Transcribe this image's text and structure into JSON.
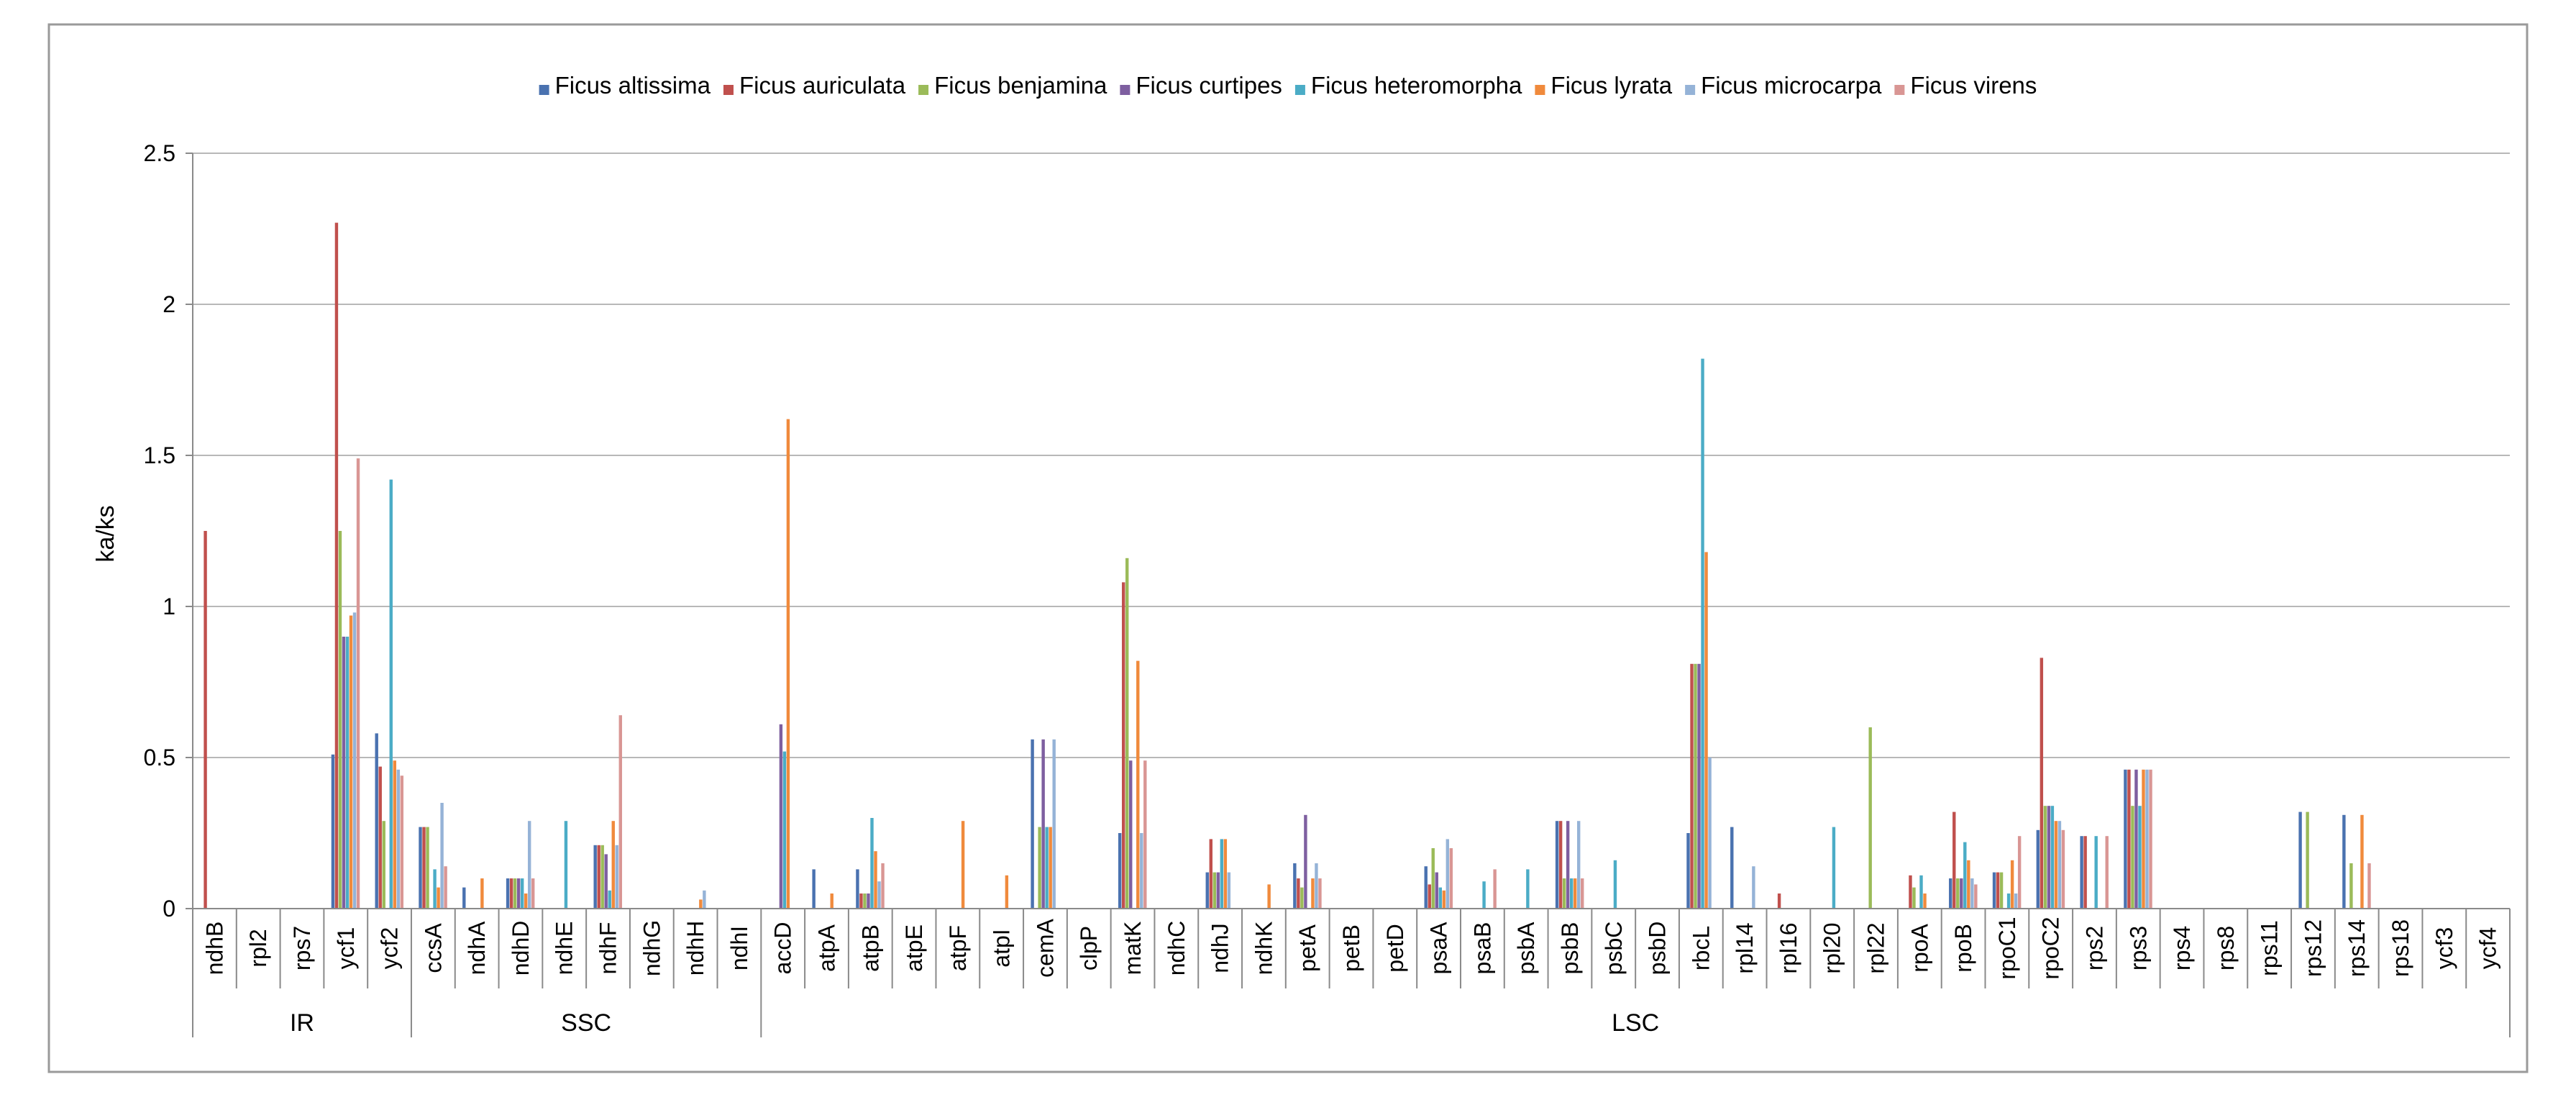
{
  "chart_data": {
    "type": "bar",
    "title": "",
    "xlabel": "",
    "ylabel": "ka/ks",
    "ylim": [
      0,
      2.5
    ],
    "yticks": [
      0,
      0.5,
      1,
      1.5,
      2,
      2.5
    ],
    "ytick_labels": [
      "0",
      "0.5",
      "1",
      "1.5",
      "2",
      "2.5"
    ],
    "grid": true,
    "legend_position": "top",
    "categories": [
      "ndhB",
      "rpl2",
      "rps7",
      "ycf1",
      "ycf2",
      "ccsA",
      "ndhA",
      "ndhD",
      "ndhE",
      "ndhF",
      "ndhG",
      "ndhH",
      "ndhI",
      "accD",
      "atpA",
      "atpB",
      "atpE",
      "atpF",
      "atpI",
      "cemA",
      "clpP",
      "matK",
      "ndhC",
      "ndhJ",
      "ndhK",
      "petA",
      "petB",
      "petD",
      "psaA",
      "psaB",
      "psbA",
      "psbB",
      "psbC",
      "psbD",
      "rbcL",
      "rpl14",
      "rpl16",
      "rpl20",
      "rpl22",
      "rpoA",
      "rpoB",
      "rpoC1",
      "rpoC2",
      "rps2",
      "rps3",
      "rps4",
      "rps8",
      "rps11",
      "rps12",
      "rps14",
      "rps18",
      "ycf3",
      "ycf4"
    ],
    "groups": [
      {
        "label": "IR",
        "count": 5
      },
      {
        "label": "SSC",
        "count": 8
      },
      {
        "label": "LSC",
        "count": 40
      }
    ],
    "series": [
      {
        "name": "Ficus altissima",
        "color": "#4a72b0",
        "values": [
          0,
          0,
          0,
          0.51,
          0.58,
          0.27,
          0.07,
          0.1,
          0,
          0.21,
          0,
          0,
          0,
          0,
          0.13,
          0.13,
          0,
          0,
          0,
          0.56,
          0,
          0.25,
          0,
          0.12,
          0,
          0.15,
          0,
          0,
          0.14,
          0,
          0,
          0.29,
          0,
          0,
          0.25,
          0.27,
          0,
          0,
          0,
          0,
          0.1,
          0.12,
          0.26,
          0.24,
          0.46,
          0,
          0,
          0,
          0.32,
          0.31,
          0,
          0,
          0
        ]
      },
      {
        "name": "Ficus auriculata",
        "color": "#c0504d",
        "values": [
          1.25,
          0,
          0,
          2.27,
          0.47,
          0.27,
          0,
          0.1,
          0,
          0.21,
          0,
          0,
          0,
          0,
          0,
          0.05,
          0,
          0,
          0,
          0,
          0,
          1.08,
          0,
          0.23,
          0,
          0.1,
          0,
          0,
          0.08,
          0,
          0,
          0.29,
          0,
          0,
          0.81,
          0,
          0.05,
          0,
          0,
          0.11,
          0.32,
          0.12,
          0.83,
          0.24,
          0.46,
          0,
          0,
          0,
          0,
          0,
          0,
          0,
          0
        ]
      },
      {
        "name": "Ficus benjamina",
        "color": "#9bbb59",
        "values": [
          0,
          0,
          0,
          1.25,
          0.29,
          0.27,
          0,
          0.1,
          0,
          0.21,
          0,
          0,
          0,
          0,
          0,
          0.05,
          0,
          0,
          0,
          0.27,
          0,
          1.16,
          0,
          0.12,
          0,
          0.07,
          0,
          0,
          0.2,
          0,
          0,
          0.1,
          0,
          0,
          0.81,
          0,
          0,
          0,
          0.6,
          0.07,
          0.1,
          0.12,
          0.34,
          0,
          0.34,
          0,
          0,
          0,
          0.32,
          0.15,
          0,
          0,
          0
        ]
      },
      {
        "name": "Ficus curtipes",
        "color": "#7e5fa0",
        "values": [
          0,
          0,
          0,
          0.9,
          0,
          0,
          0,
          0.1,
          0,
          0.18,
          0,
          0,
          0,
          0.61,
          0,
          0.05,
          0,
          0,
          0,
          0.56,
          0,
          0.49,
          0,
          0.12,
          0,
          0.31,
          0,
          0,
          0.12,
          0,
          0,
          0.29,
          0,
          0,
          0.81,
          0,
          0,
          0,
          0,
          0,
          0.1,
          0,
          0.34,
          0,
          0.46,
          0,
          0,
          0,
          0,
          0,
          0,
          0,
          0
        ]
      },
      {
        "name": "Ficus heteromorpha",
        "color": "#4bacc6",
        "values": [
          0,
          0,
          0,
          0.9,
          1.42,
          0.13,
          0,
          0.1,
          0.29,
          0.06,
          0,
          0,
          0,
          0.52,
          0,
          0.3,
          0,
          0,
          0,
          0.27,
          0,
          0,
          0,
          0.23,
          0,
          0,
          0,
          0,
          0.07,
          0.09,
          0.13,
          0.1,
          0.16,
          0,
          1.82,
          0,
          0,
          0.27,
          0,
          0.11,
          0.22,
          0.05,
          0.34,
          0.24,
          0.34,
          0,
          0,
          0,
          0,
          0,
          0,
          0,
          0
        ]
      },
      {
        "name": "Ficus lyrata",
        "color": "#f08a3c",
        "values": [
          0,
          0,
          0,
          0.97,
          0.49,
          0.07,
          0.1,
          0.05,
          0,
          0.29,
          0,
          0.03,
          0,
          1.62,
          0.05,
          0.19,
          0,
          0.29,
          0.11,
          0.27,
          0,
          0.82,
          0,
          0.23,
          0.08,
          0.1,
          0,
          0,
          0.06,
          0,
          0,
          0.1,
          0,
          0,
          1.18,
          0,
          0,
          0,
          0,
          0.05,
          0.16,
          0.16,
          0.29,
          0,
          0.46,
          0,
          0,
          0,
          0,
          0.31,
          0,
          0,
          0
        ]
      },
      {
        "name": "Ficus microcarpa",
        "color": "#95b3d7",
        "values": [
          0,
          0,
          0,
          0.98,
          0.46,
          0.35,
          0,
          0.29,
          0,
          0.21,
          0,
          0.06,
          0,
          0,
          0,
          0.09,
          0,
          0,
          0,
          0.56,
          0,
          0.25,
          0,
          0.12,
          0,
          0.15,
          0,
          0,
          0.23,
          0,
          0,
          0.29,
          0,
          0,
          0.5,
          0.14,
          0,
          0,
          0,
          0,
          0.1,
          0.05,
          0.29,
          0,
          0.46,
          0,
          0,
          0,
          0,
          0,
          0,
          0,
          0
        ]
      },
      {
        "name": "Ficus virens",
        "color": "#d99694",
        "values": [
          0,
          0,
          0,
          1.49,
          0.44,
          0.14,
          0,
          0.1,
          0,
          0.64,
          0,
          0,
          0,
          0,
          0,
          0.15,
          0,
          0,
          0,
          0,
          0,
          0.49,
          0,
          0,
          0,
          0.1,
          0,
          0,
          0.2,
          0.13,
          0,
          0.1,
          0,
          0,
          0,
          0,
          0,
          0,
          0,
          0,
          0.08,
          0.24,
          0.26,
          0.24,
          0.46,
          0,
          0,
          0,
          0,
          0.15,
          0,
          0,
          0
        ]
      }
    ]
  }
}
